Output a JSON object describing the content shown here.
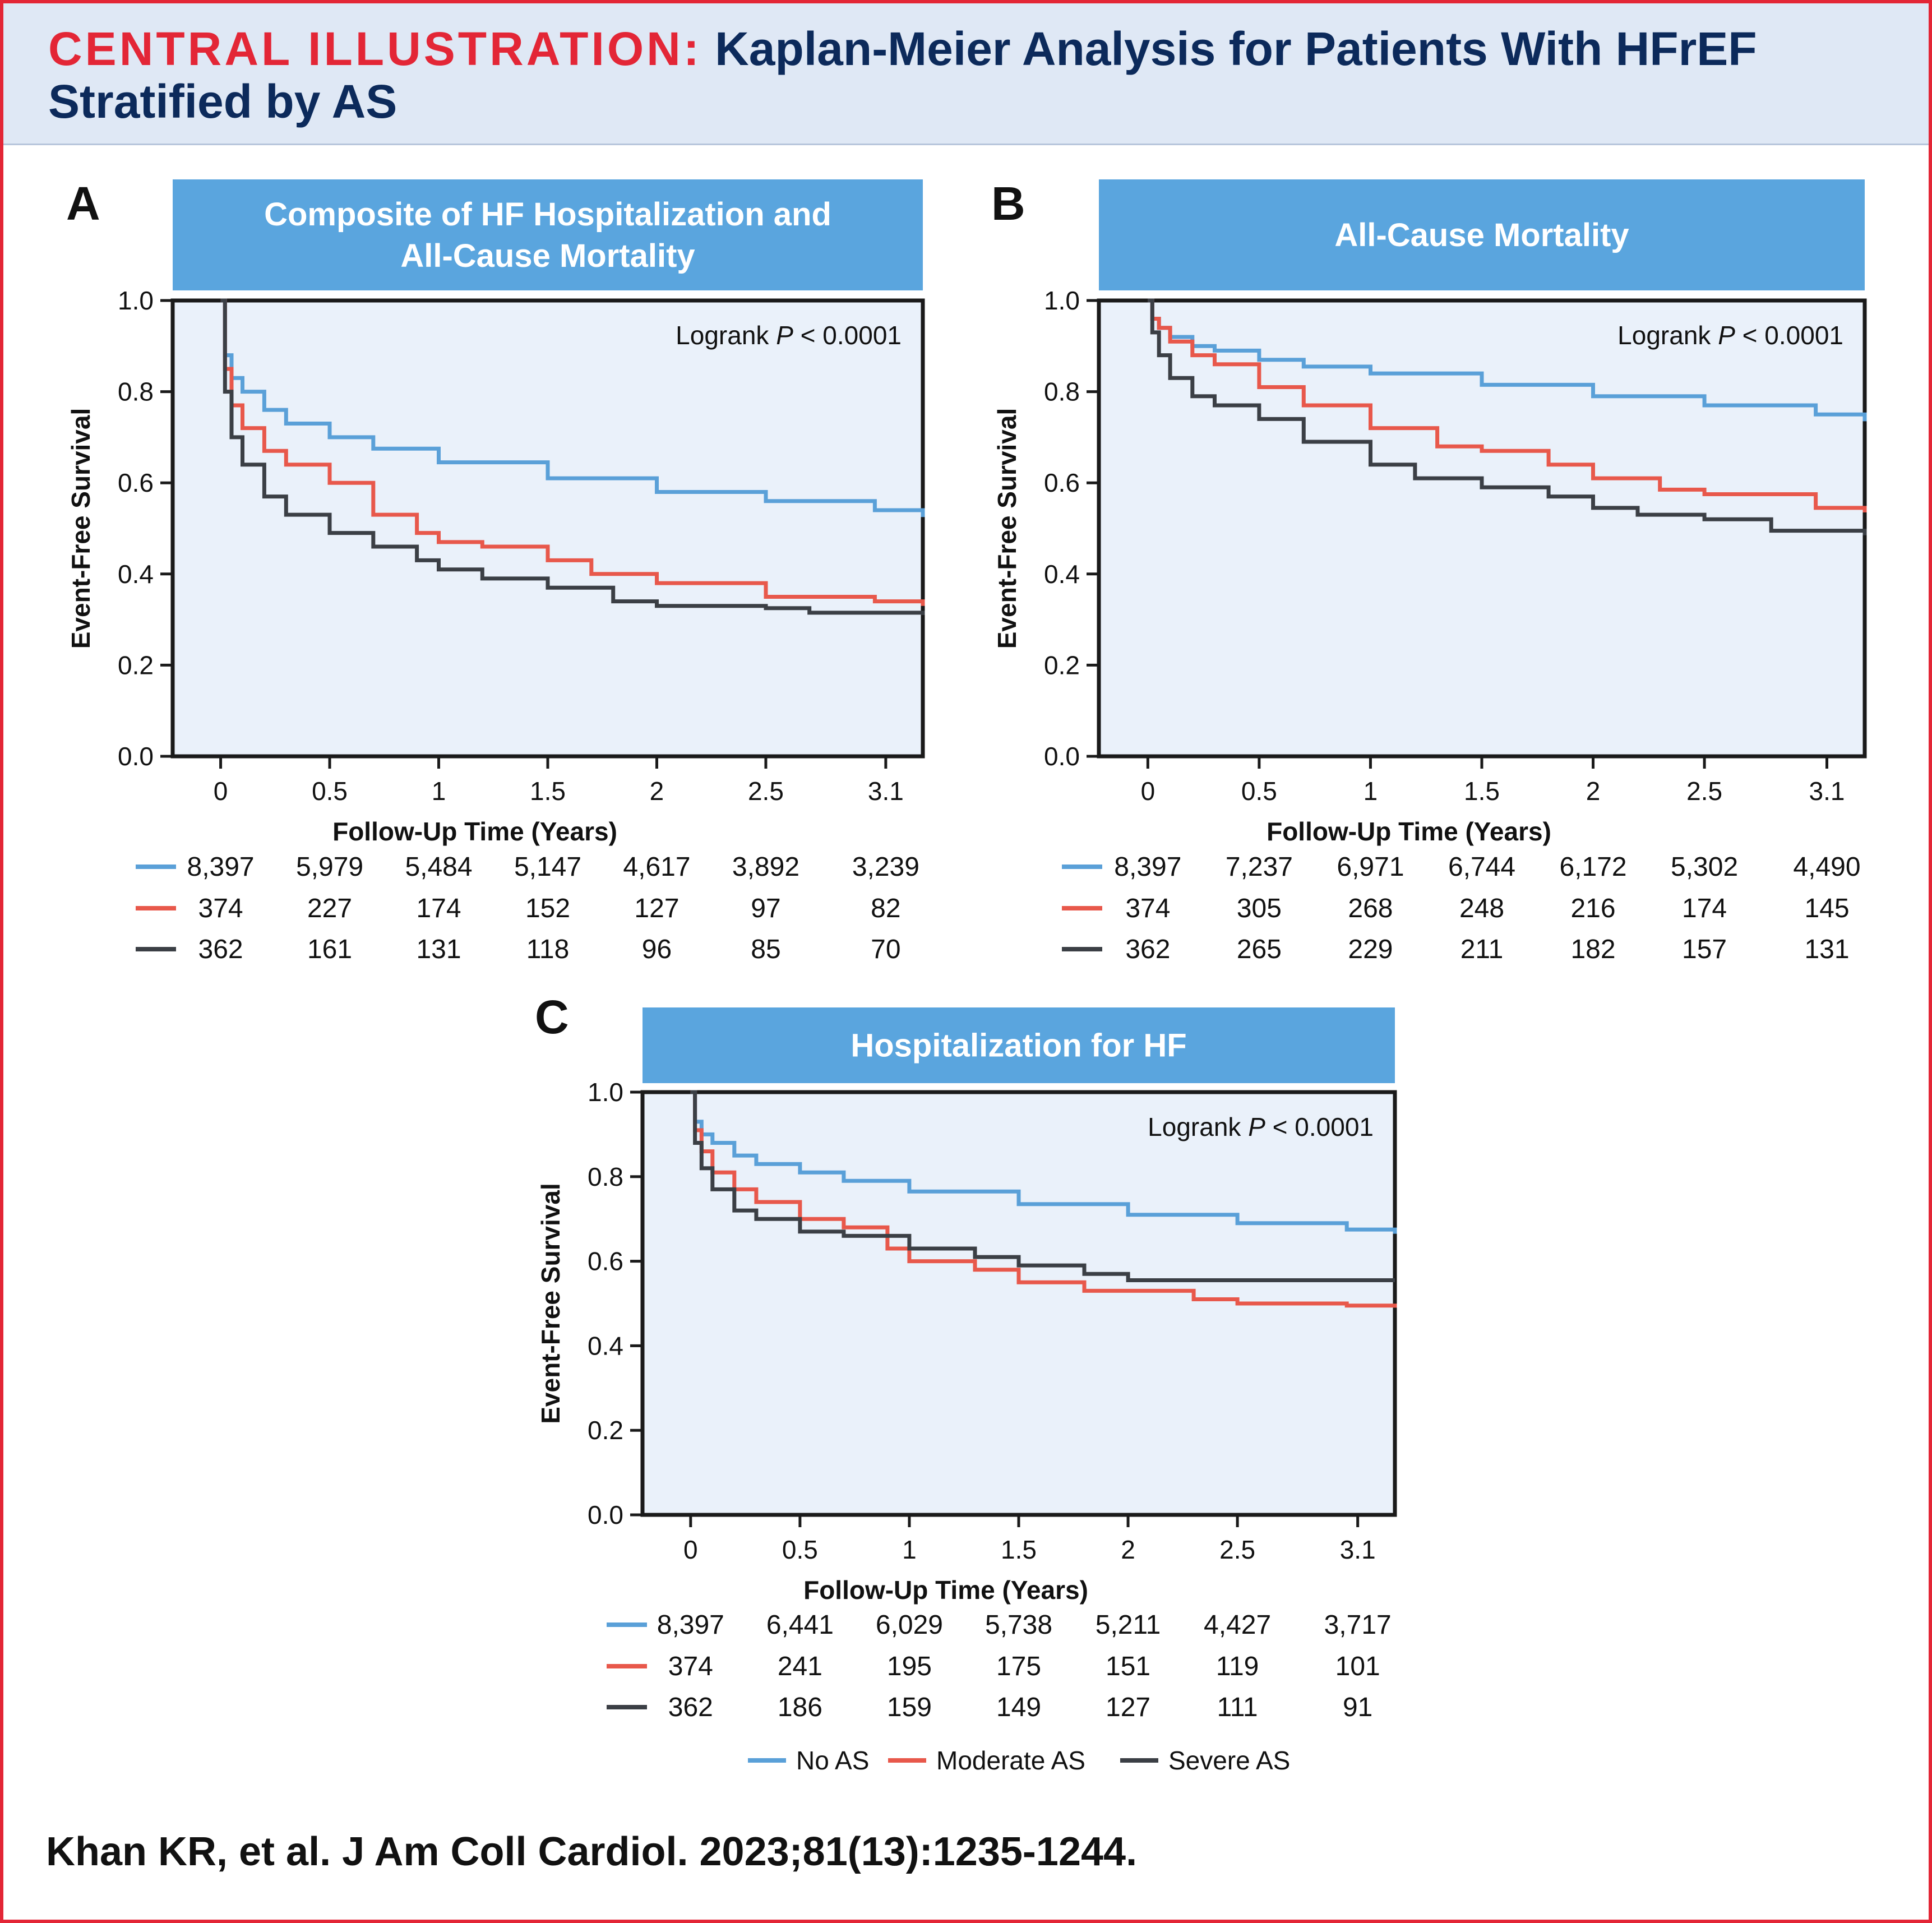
{
  "header": {
    "prefix": "CENTRAL ILLUSTRATION:",
    "title": "Kaplan-Meier Analysis for Patients With HFrEF Stratified by AS"
  },
  "citation": "Khan KR, et al. J Am Coll Cardiol. 2023;81(13):1235-1244.",
  "colors": {
    "no_as": "#5aa0d8",
    "moderate_as": "#e8584b",
    "severe_as": "#3b3f45",
    "banner": "#5aa5de",
    "plot_bg": "#eaf1fa",
    "accent_red": "#e32636"
  },
  "legend": [
    "No AS",
    "Moderate AS",
    "Severe AS"
  ],
  "chart_data": [
    {
      "panel": "A",
      "type": "line",
      "title": "Composite of HF Hospitalization and All-Cause Mortality",
      "title_lines": [
        "Composite of HF Hospitalization and",
        "All-Cause Mortality"
      ],
      "xlabel": "Follow-Up Time (Years)",
      "ylabel": "Event-Free Survival",
      "annotation": {
        "pre": "Logrank ",
        "italic": "P",
        "post": " < 0.0001"
      },
      "xlim": [
        -0.22,
        3.22
      ],
      "ylim": [
        0,
        1
      ],
      "xticks": [
        0,
        0.5,
        1,
        1.5,
        2,
        2.5,
        3.05
      ],
      "xtick_labels": [
        "0",
        "0.5",
        "1",
        "1.5",
        "2",
        "2.5",
        "3.1"
      ],
      "yticks": [
        0,
        0.2,
        0.4,
        0.6,
        0.8,
        1.0
      ],
      "ytick_labels": [
        "0.0",
        "0.2",
        "0.4",
        "0.6",
        "0.8",
        "1.0"
      ],
      "grid": false,
      "series": [
        {
          "name": "No AS",
          "x": [
            0,
            0.02,
            0.05,
            0.1,
            0.2,
            0.3,
            0.5,
            0.7,
            1.0,
            1.5,
            2.0,
            2.5,
            3.0,
            3.22
          ],
          "y": [
            1.0,
            0.88,
            0.83,
            0.8,
            0.76,
            0.73,
            0.7,
            0.675,
            0.645,
            0.61,
            0.58,
            0.56,
            0.54,
            0.525
          ]
        },
        {
          "name": "Moderate AS",
          "x": [
            0,
            0.02,
            0.05,
            0.1,
            0.2,
            0.3,
            0.5,
            0.7,
            0.9,
            1.0,
            1.2,
            1.5,
            1.7,
            2.0,
            2.5,
            3.0,
            3.22
          ],
          "y": [
            1.0,
            0.85,
            0.77,
            0.72,
            0.67,
            0.64,
            0.6,
            0.53,
            0.49,
            0.47,
            0.46,
            0.43,
            0.4,
            0.38,
            0.35,
            0.34,
            0.33
          ]
        },
        {
          "name": "Severe AS",
          "x": [
            0,
            0.02,
            0.05,
            0.1,
            0.2,
            0.3,
            0.5,
            0.7,
            0.9,
            1.0,
            1.2,
            1.5,
            1.8,
            2.0,
            2.5,
            2.7,
            3.22
          ],
          "y": [
            1.0,
            0.8,
            0.7,
            0.64,
            0.57,
            0.53,
            0.49,
            0.46,
            0.43,
            0.41,
            0.39,
            0.37,
            0.34,
            0.33,
            0.325,
            0.315,
            0.31
          ]
        }
      ],
      "risk_table": [
        {
          "name": "No AS",
          "values": [
            "8,397",
            "5,979",
            "5,484",
            "5,147",
            "4,617",
            "3,892",
            "3,239"
          ]
        },
        {
          "name": "Moderate AS",
          "values": [
            "374",
            "227",
            "174",
            "152",
            "127",
            "97",
            "82"
          ]
        },
        {
          "name": "Severe AS",
          "values": [
            "362",
            "161",
            "131",
            "118",
            "96",
            "85",
            "70"
          ]
        }
      ]
    },
    {
      "panel": "B",
      "type": "line",
      "title": "All-Cause Mortality",
      "title_lines": [
        "All-Cause Mortality"
      ],
      "xlabel": "Follow-Up Time (Years)",
      "ylabel": "Event-Free Survival",
      "annotation": {
        "pre": "Logrank ",
        "italic": "P",
        "post": " < 0.0001"
      },
      "xlim": [
        -0.22,
        3.22
      ],
      "ylim": [
        0,
        1
      ],
      "xticks": [
        0,
        0.5,
        1,
        1.5,
        2,
        2.5,
        3.05
      ],
      "xtick_labels": [
        "0",
        "0.5",
        "1",
        "1.5",
        "2",
        "2.5",
        "3.1"
      ],
      "yticks": [
        0,
        0.2,
        0.4,
        0.6,
        0.8,
        1.0
      ],
      "ytick_labels": [
        "0.0",
        "0.2",
        "0.4",
        "0.6",
        "0.8",
        "1.0"
      ],
      "grid": false,
      "series": [
        {
          "name": "No AS",
          "x": [
            0,
            0.02,
            0.05,
            0.1,
            0.2,
            0.3,
            0.5,
            0.7,
            1.0,
            1.5,
            2.0,
            2.5,
            3.0,
            3.22
          ],
          "y": [
            1.0,
            0.96,
            0.94,
            0.92,
            0.9,
            0.89,
            0.87,
            0.855,
            0.84,
            0.815,
            0.79,
            0.77,
            0.75,
            0.735
          ]
        },
        {
          "name": "Moderate AS",
          "x": [
            0,
            0.02,
            0.05,
            0.1,
            0.2,
            0.3,
            0.5,
            0.7,
            1.0,
            1.3,
            1.5,
            1.8,
            2.0,
            2.3,
            2.5,
            3.0,
            3.22
          ],
          "y": [
            1.0,
            0.96,
            0.94,
            0.91,
            0.88,
            0.86,
            0.81,
            0.77,
            0.72,
            0.68,
            0.67,
            0.64,
            0.61,
            0.585,
            0.575,
            0.545,
            0.535
          ]
        },
        {
          "name": "Severe AS",
          "x": [
            0,
            0.02,
            0.05,
            0.1,
            0.2,
            0.3,
            0.5,
            0.7,
            1.0,
            1.2,
            1.5,
            1.8,
            2.0,
            2.2,
            2.5,
            2.8,
            3.22
          ],
          "y": [
            1.0,
            0.93,
            0.88,
            0.83,
            0.79,
            0.77,
            0.74,
            0.69,
            0.64,
            0.61,
            0.59,
            0.57,
            0.545,
            0.53,
            0.52,
            0.495,
            0.485
          ]
        }
      ],
      "risk_table": [
        {
          "name": "No AS",
          "values": [
            "8,397",
            "7,237",
            "6,971",
            "6,744",
            "6,172",
            "5,302",
            "4,490"
          ]
        },
        {
          "name": "Moderate AS",
          "values": [
            "374",
            "305",
            "268",
            "248",
            "216",
            "174",
            "145"
          ]
        },
        {
          "name": "Severe AS",
          "values": [
            "362",
            "265",
            "229",
            "211",
            "182",
            "157",
            "131"
          ]
        }
      ]
    },
    {
      "panel": "C",
      "type": "line",
      "title": "Hospitalization for HF",
      "title_lines": [
        "Hospitalization for HF"
      ],
      "xlabel": "Follow-Up Time (Years)",
      "ylabel": "Event-Free Survival",
      "annotation": {
        "pre": "Logrank ",
        "italic": "P",
        "post": " < 0.0001"
      },
      "xlim": [
        -0.22,
        3.22
      ],
      "ylim": [
        0,
        1
      ],
      "xticks": [
        0,
        0.5,
        1,
        1.5,
        2,
        2.5,
        3.05
      ],
      "xtick_labels": [
        "0",
        "0.5",
        "1",
        "1.5",
        "2",
        "2.5",
        "3.1"
      ],
      "yticks": [
        0,
        0.2,
        0.4,
        0.6,
        0.8,
        1.0
      ],
      "ytick_labels": [
        "0.0",
        "0.2",
        "0.4",
        "0.6",
        "0.8",
        "1.0"
      ],
      "grid": false,
      "series": [
        {
          "name": "No AS",
          "x": [
            0,
            0.02,
            0.05,
            0.1,
            0.2,
            0.3,
            0.5,
            0.7,
            1.0,
            1.5,
            2.0,
            2.5,
            3.0,
            3.22
          ],
          "y": [
            1.0,
            0.93,
            0.9,
            0.88,
            0.85,
            0.83,
            0.81,
            0.79,
            0.765,
            0.735,
            0.71,
            0.69,
            0.675,
            0.665
          ]
        },
        {
          "name": "Moderate AS",
          "x": [
            0,
            0.02,
            0.05,
            0.1,
            0.2,
            0.3,
            0.5,
            0.7,
            0.9,
            1.0,
            1.3,
            1.5,
            1.8,
            2.0,
            2.3,
            2.5,
            3.0,
            3.22
          ],
          "y": [
            1.0,
            0.91,
            0.86,
            0.81,
            0.77,
            0.74,
            0.7,
            0.68,
            0.63,
            0.6,
            0.58,
            0.55,
            0.53,
            0.53,
            0.51,
            0.5,
            0.495,
            0.49
          ]
        },
        {
          "name": "Severe AS",
          "x": [
            0,
            0.02,
            0.05,
            0.1,
            0.2,
            0.3,
            0.5,
            0.7,
            1.0,
            1.3,
            1.5,
            1.8,
            2.0,
            2.5,
            3.0,
            3.22
          ],
          "y": [
            1.0,
            0.88,
            0.82,
            0.77,
            0.72,
            0.7,
            0.67,
            0.66,
            0.63,
            0.61,
            0.59,
            0.57,
            0.555,
            0.555,
            0.555,
            0.555
          ]
        }
      ],
      "risk_table": [
        {
          "name": "No AS",
          "values": [
            "8,397",
            "6,441",
            "6,029",
            "5,738",
            "5,211",
            "4,427",
            "3,717"
          ]
        },
        {
          "name": "Moderate AS",
          "values": [
            "374",
            "241",
            "195",
            "175",
            "151",
            "119",
            "101"
          ]
        },
        {
          "name": "Severe AS",
          "values": [
            "362",
            "186",
            "159",
            "149",
            "127",
            "111",
            "91"
          ]
        }
      ]
    }
  ]
}
